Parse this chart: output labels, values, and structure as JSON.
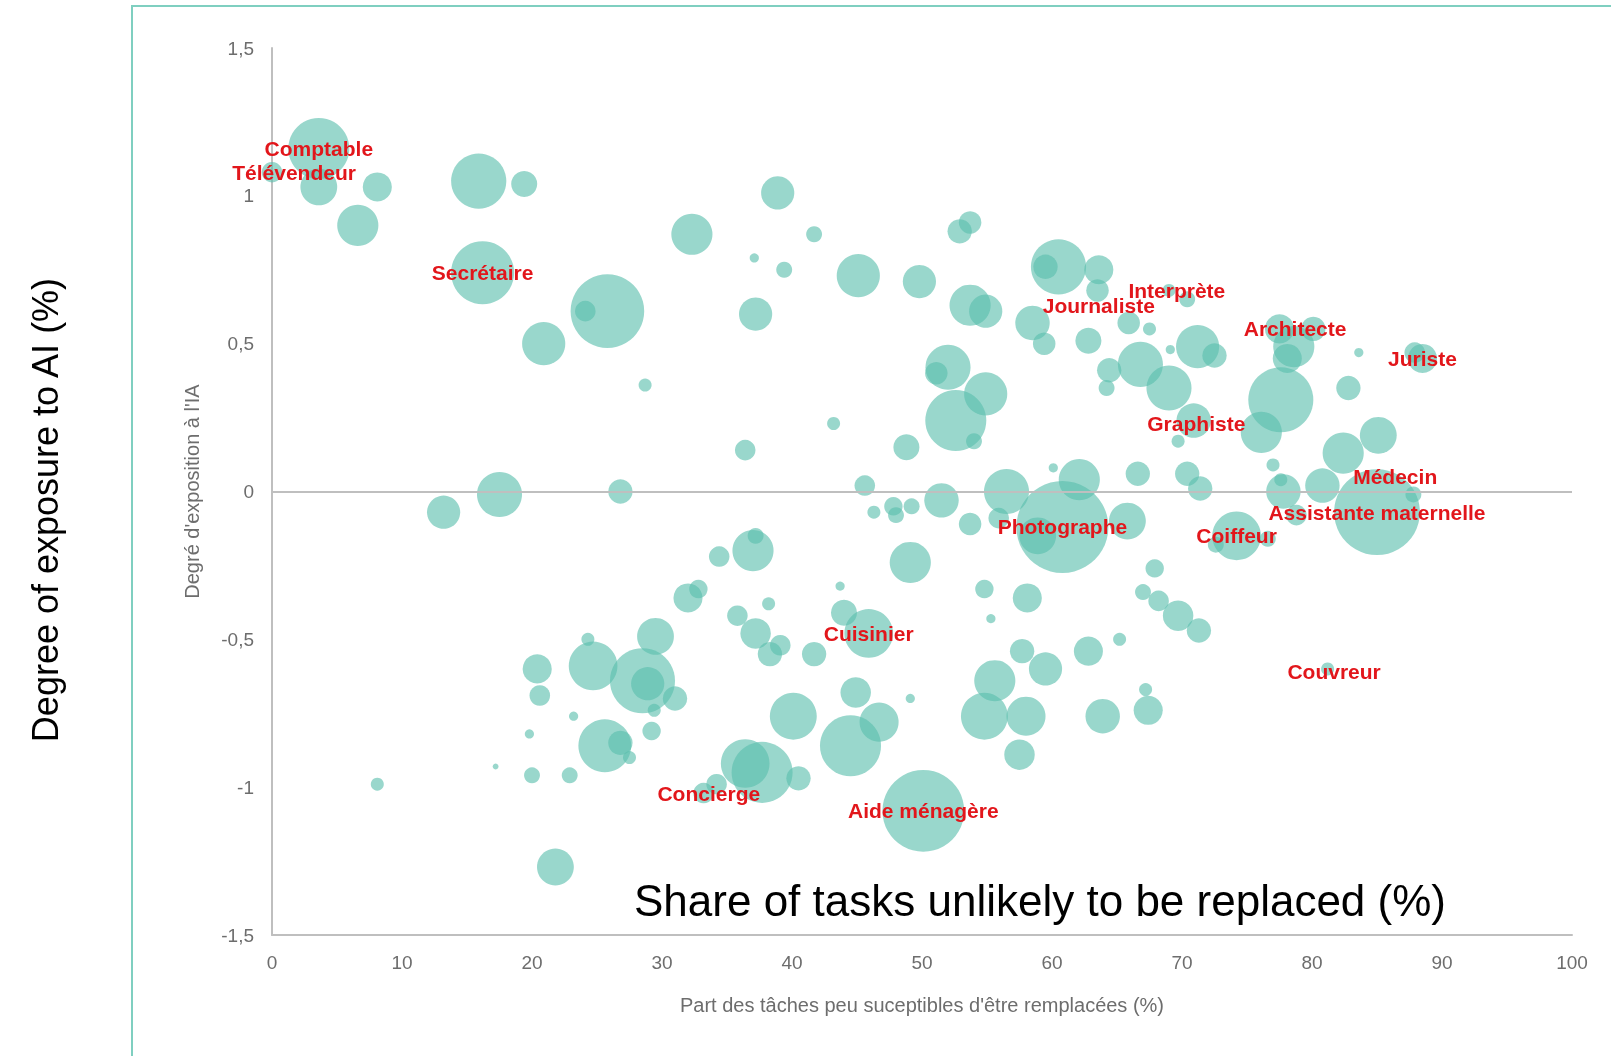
{
  "chart_data": {
    "type": "bubble",
    "xlabel": "Part des tâches peu suceptibles d'être remplacées (%)",
    "ylabel": "Degré d'exposition à l'IA",
    "xlim": [
      0,
      100
    ],
    "xticks": [
      0,
      10,
      20,
      30,
      40,
      50,
      60,
      70,
      80,
      90,
      100
    ],
    "ylim": [
      -1.5,
      1.5
    ],
    "yticks": [
      {
        "value": -1.5,
        "label": "-1,5"
      },
      -1,
      {
        "value": -0.5,
        "label": "-0,5"
      },
      0,
      {
        "value": 0.5,
        "label": "0,5"
      },
      1,
      {
        "value": 1.5,
        "label": "1,5"
      }
    ],
    "ref_lines": [
      {
        "axis": "y",
        "value": 0,
        "color": "#bfbfbf"
      }
    ],
    "series": [
      {
        "color": "#5bbfad",
        "x": [
          3.6,
          0,
          3.6,
          8.1,
          6.6,
          15.9,
          19.4,
          16.2,
          25.8,
          24.1,
          20.9,
          32.3,
          38.9,
          39.4,
          37.1,
          41.7,
          37.2,
          28.7,
          45.1,
          49.8,
          53.7,
          52.9,
          36.4,
          43.2,
          48.8,
          52,
          52.6,
          54.9,
          53.7,
          54.9,
          54,
          51.1,
          60.5,
          63.6,
          59.5,
          58.5,
          59.4,
          62.8,
          63.5,
          65.9,
          67.5,
          66.8,
          64.4,
          64.2,
          69,
          71.2,
          72.5,
          69.1,
          70.4,
          69,
          77.5,
          80.1,
          78.6,
          78.1,
          77.6,
          76.1,
          70.9,
          69.7,
          83.6,
          82.8,
          88.5,
          87.9,
          85.1,
          82.4,
          80.8,
          77.8,
          77.6,
          77,
          85,
          87.8,
          78.8,
          74.2,
          72.6,
          76.6,
          66.6,
          70.4,
          71.4,
          62.1,
          65.8,
          60.8,
          58.9,
          60.1,
          56.5,
          55.9,
          53.7,
          51.5,
          45.6,
          46.3,
          47.8,
          49.2,
          48,
          49.1,
          37,
          37.2,
          34.4,
          32,
          32.8,
          35.8,
          38.2,
          37.2,
          38.3,
          39.1,
          41.7,
          44,
          45.9,
          43.7,
          29.5,
          24.7,
          28.5,
          28.9,
          29.4,
          20.4,
          24.3,
          20.6,
          31,
          25.6,
          26.8,
          27.5,
          29.2,
          23.2,
          19.8,
          17.2,
          8.1,
          20,
          22.9,
          21.8,
          13.2,
          17.5,
          26.8,
          36.4,
          37.7,
          34.2,
          33.2,
          40.5,
          40.1,
          44.5,
          46.7,
          44.9,
          50.1,
          49.1,
          54.8,
          55.6,
          58,
          57.5,
          54.8,
          55.3,
          58.1,
          57.7,
          59.5,
          62.8,
          63.9,
          65.2,
          67.4,
          67.2,
          67.9,
          67,
          68.2,
          69.7,
          71.3,
          81.2
        ],
        "values": [
          1.16,
          1.08,
          1.03,
          1.03,
          0.9,
          1.05,
          1.04,
          0.74,
          0.61,
          0.61,
          0.5,
          0.87,
          1.01,
          0.75,
          0.79,
          0.87,
          0.6,
          0.36,
          0.73,
          0.71,
          0.91,
          0.88,
          0.14,
          0.23,
          0.15,
          0.42,
          0.24,
          0.33,
          0.63,
          0.61,
          0.17,
          0.4,
          0.76,
          0.75,
          0.76,
          0.57,
          0.5,
          0.51,
          0.68,
          0.57,
          0.55,
          0.43,
          0.41,
          0.35,
          0.35,
          0.49,
          0.46,
          0.48,
          0.65,
          0.68,
          0.55,
          0.55,
          0.49,
          0.45,
          0.31,
          0.2,
          0.24,
          0.17,
          0.47,
          0.35,
          0.45,
          0.47,
          0.19,
          0.13,
          0.02,
          0,
          0.04,
          0.09,
          -0.07,
          -0.01,
          -0.08,
          -0.15,
          -0.18,
          -0.16,
          0.06,
          0.06,
          0.01,
          0.04,
          -0.1,
          -0.12,
          -0.15,
          0.08,
          0,
          -0.09,
          -0.11,
          -0.03,
          0.02,
          -0.07,
          -0.05,
          -0.05,
          -0.08,
          -0.24,
          -0.2,
          -0.15,
          -0.22,
          -0.36,
          -0.33,
          -0.42,
          -0.38,
          -0.48,
          -0.55,
          -0.52,
          -0.55,
          -0.41,
          -0.48,
          -0.32,
          -0.49,
          -0.59,
          -0.64,
          -0.65,
          -0.74,
          -0.6,
          -0.5,
          -0.69,
          -0.7,
          -0.86,
          -0.85,
          -0.9,
          -0.81,
          -0.76,
          -0.82,
          -0.93,
          -0.99,
          -0.96,
          -0.96,
          -1.27,
          -0.07,
          -0.01,
          0,
          -0.92,
          -0.95,
          -0.99,
          -1.02,
          -0.97,
          -0.76,
          -0.86,
          -0.78,
          -0.68,
          -1.08,
          -0.7,
          -0.76,
          -0.64,
          -0.76,
          -0.89,
          -0.33,
          -0.43,
          -0.36,
          -0.54,
          -0.6,
          -0.54,
          -0.76,
          -0.5,
          -0.74,
          -0.67,
          -0.26,
          -0.34,
          -0.37,
          -0.42,
          -0.47,
          -0.6
        ],
        "sizes": [
          0.44,
          0.05,
          0.16,
          0.1,
          0.2,
          0.36,
          0.08,
          0.47,
          0.64,
          0.05,
          0.22,
          0.2,
          0.13,
          0.03,
          0.01,
          0.03,
          0.13,
          0.02,
          0.22,
          0.13,
          0.06,
          0.07,
          0.05,
          0.02,
          0.08,
          0.24,
          0.44,
          0.22,
          0.2,
          0.13,
          0.03,
          0.06,
          0.36,
          0.1,
          0.07,
          0.14,
          0.06,
          0.08,
          0.06,
          0.06,
          0.02,
          0.24,
          0.07,
          0.03,
          0.24,
          0.22,
          0.07,
          0.01,
          0.03,
          0.02,
          0.1,
          0.07,
          0.2,
          0.1,
          0.5,
          0.2,
          0.14,
          0.02,
          0.01,
          0.07,
          0.1,
          0.05,
          0.16,
          0.2,
          0.14,
          0.14,
          0.02,
          0.02,
          0.87,
          0.03,
          0.05,
          0.28,
          0.03,
          0.03,
          0.07,
          0.07,
          0.07,
          0.2,
          0.16,
          1,
          0.16,
          0.01,
          0.24,
          0.05,
          0.06,
          0.14,
          0.05,
          0.02,
          0.04,
          0.03,
          0.03,
          0.2,
          0.2,
          0.03,
          0.05,
          0.1,
          0.04,
          0.05,
          0.02,
          0.11,
          0.07,
          0.05,
          0.07,
          0.08,
          0.28,
          0.01,
          0.16,
          0.28,
          0.5,
          0.13,
          0.02,
          0.1,
          0.02,
          0.05,
          0.07,
          0.33,
          0.07,
          0.02,
          0.04,
          0.01,
          0.01,
          0.004,
          0.02,
          0.03,
          0.03,
          0.16,
          0.13,
          0.24,
          0.07,
          0.28,
          0.44,
          0.05,
          0.05,
          0.07,
          0.26,
          0.44,
          0.18,
          0.11,
          0.79,
          0.01,
          0.26,
          0.2,
          0.18,
          0.11,
          0.04,
          0.01,
          0.1,
          0.07,
          0.13,
          0.1,
          0.14,
          0.02,
          0.1,
          0.02,
          0.04,
          0.03,
          0.05,
          0.11,
          0.07,
          0.02
        ]
      }
    ],
    "annotations": [
      {
        "text": "Comptable",
        "x": 3.6,
        "y": 1.16
      },
      {
        "text": "Télévendeur",
        "x": 1.7,
        "y": 1.08
      },
      {
        "text": "Secrétaire",
        "x": 16.2,
        "y": 0.74
      },
      {
        "text": "Journaliste",
        "x": 63.6,
        "y": 0.63
      },
      {
        "text": "Interprète",
        "x": 69.6,
        "y": 0.68
      },
      {
        "text": "Architecte",
        "x": 78.7,
        "y": 0.55
      },
      {
        "text": "Juriste",
        "x": 88.5,
        "y": 0.45
      },
      {
        "text": "Graphiste",
        "x": 71.1,
        "y": 0.23
      },
      {
        "text": "Médecin",
        "x": 86.4,
        "y": 0.05
      },
      {
        "text": "Photographe",
        "x": 60.8,
        "y": -0.12
      },
      {
        "text": "Coiffeur",
        "x": 74.2,
        "y": -0.15
      },
      {
        "text": "Assistante maternelle",
        "x": 85,
        "y": -0.07
      },
      {
        "text": "Cuisinier",
        "x": 45.9,
        "y": -0.48
      },
      {
        "text": "Couvreur",
        "x": 81.7,
        "y": -0.61
      },
      {
        "text": "Concierge",
        "x": 33.6,
        "y": -1.02
      },
      {
        "text": "Aide ménagère",
        "x": 50.1,
        "y": -1.08
      },
      "Degree of exposure to AI (%)",
      "Share of tasks unlikely to be replaced (%)"
    ]
  }
}
